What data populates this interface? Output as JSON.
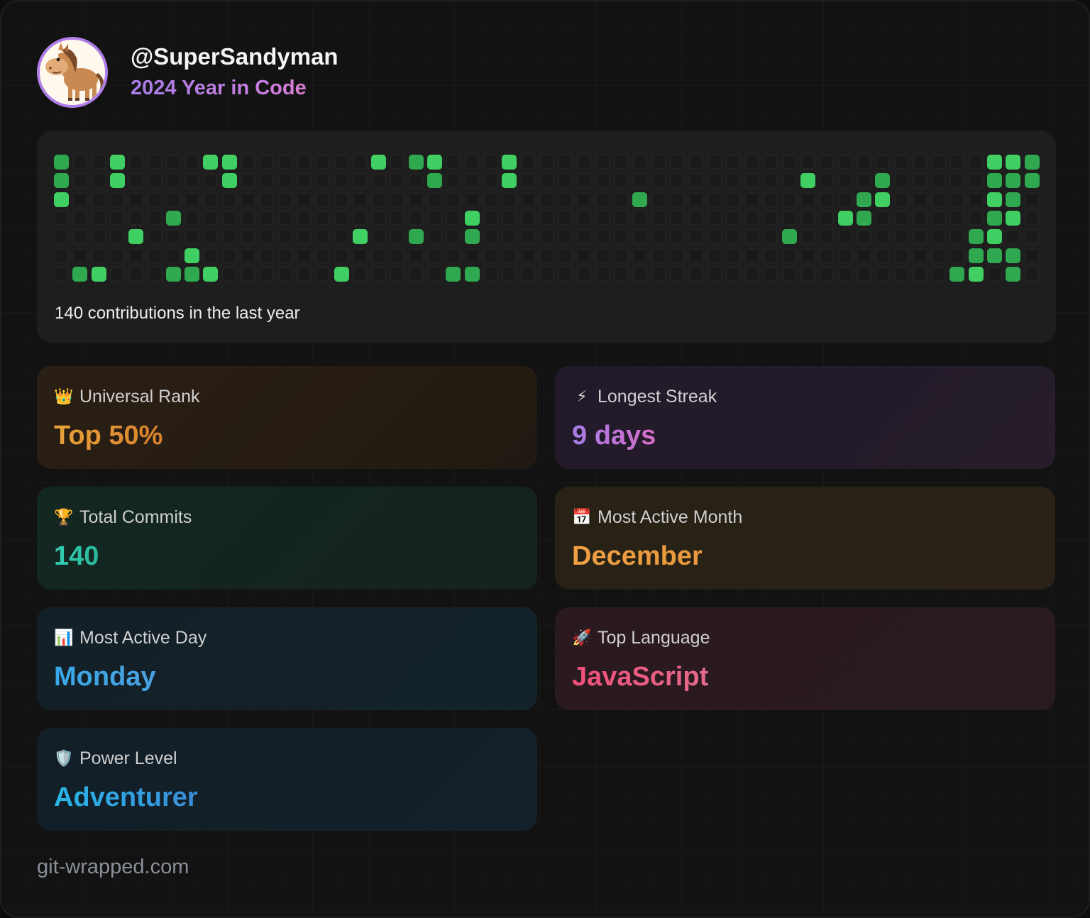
{
  "profile": {
    "username": "@SuperSandyman",
    "subtitle": "2024 Year in Code",
    "avatar_icon": "horse-avatar-icon",
    "avatar_border_color": "#b07ee8"
  },
  "contributions": {
    "caption": "140 contributions in the last year",
    "weeks": 53,
    "days_per_week": 7,
    "colors": {
      "empty": "#1a1a1a",
      "level1": "#2fa84f",
      "level2": "#3fcf62"
    },
    "active_cells": [
      [
        0,
        0,
        1
      ],
      [
        0,
        1,
        1
      ],
      [
        0,
        2,
        2
      ],
      [
        3,
        0,
        2
      ],
      [
        3,
        1,
        2
      ],
      [
        8,
        0,
        2
      ],
      [
        9,
        0,
        2
      ],
      [
        9,
        1,
        2
      ],
      [
        17,
        0,
        2
      ],
      [
        19,
        0,
        1
      ],
      [
        20,
        0,
        2
      ],
      [
        20,
        1,
        1
      ],
      [
        24,
        0,
        2
      ],
      [
        24,
        1,
        2
      ],
      [
        51,
        0,
        2
      ],
      [
        52,
        0,
        1
      ],
      [
        51,
        1,
        1
      ],
      [
        52,
        1,
        1
      ],
      [
        50,
        0,
        2
      ],
      [
        50,
        1,
        1
      ],
      [
        50,
        2,
        2
      ],
      [
        51,
        2,
        1
      ],
      [
        6,
        3,
        1
      ],
      [
        22,
        3,
        2
      ],
      [
        4,
        4,
        2
      ],
      [
        16,
        4,
        2
      ],
      [
        19,
        4,
        1
      ],
      [
        22,
        4,
        1
      ],
      [
        7,
        5,
        2
      ],
      [
        1,
        6,
        1
      ],
      [
        2,
        6,
        2
      ],
      [
        6,
        6,
        1
      ],
      [
        7,
        6,
        1
      ],
      [
        8,
        6,
        2
      ],
      [
        15,
        6,
        2
      ],
      [
        21,
        6,
        1
      ],
      [
        22,
        6,
        1
      ],
      [
        31,
        2,
        1
      ],
      [
        40,
        1,
        2
      ],
      [
        44,
        1,
        1
      ],
      [
        43,
        2,
        1
      ],
      [
        44,
        2,
        2
      ],
      [
        42,
        3,
        2
      ],
      [
        43,
        3,
        1
      ],
      [
        39,
        4,
        1
      ],
      [
        50,
        3,
        1
      ],
      [
        51,
        3,
        2
      ],
      [
        49,
        4,
        1
      ],
      [
        50,
        4,
        2
      ],
      [
        49,
        5,
        1
      ],
      [
        50,
        5,
        1
      ],
      [
        51,
        5,
        1
      ],
      [
        48,
        6,
        1
      ],
      [
        49,
        6,
        2
      ],
      [
        51,
        6,
        1
      ]
    ]
  },
  "stats": [
    {
      "key": "universal-rank",
      "icon": "crown-icon",
      "emoji": "👑",
      "label": "Universal Rank",
      "value": "Top 50%",
      "bg": [
        "#2a1f14",
        "#221a12"
      ],
      "value_gradient": [
        "#e8a23a",
        "#d9822b"
      ]
    },
    {
      "key": "longest-streak",
      "icon": "lightning-icon",
      "emoji": "⚡",
      "label": "Longest Streak",
      "value": "9 days",
      "bg": [
        "#221a2a",
        "#261c2a"
      ],
      "value_gradient": [
        "#a67ee8",
        "#d46cc7"
      ]
    },
    {
      "key": "total-commits",
      "icon": "trophy-icon",
      "emoji": "🏆",
      "label": "Total Commits",
      "value": "140",
      "bg": [
        "#132722",
        "#16231d"
      ],
      "value_gradient": [
        "#34d0b6",
        "#2ab79a"
      ]
    },
    {
      "key": "most-active-month",
      "icon": "calendar-icon",
      "emoji": "📅",
      "label": "Most Active Month",
      "value": "December",
      "bg": [
        "#272116",
        "#2a2216"
      ],
      "value_gradient": [
        "#f0a045",
        "#e89a3c"
      ]
    },
    {
      "key": "most-active-day",
      "icon": "bar-chart-icon",
      "emoji": "📊",
      "label": "Most Active Day",
      "value": "Monday",
      "bg": [
        "#132027",
        "#14222a"
      ],
      "value_gradient": [
        "#3aa8e8",
        "#4ba0e0"
      ]
    },
    {
      "key": "top-language",
      "icon": "rocket-icon",
      "emoji": "🚀",
      "label": "Top Language",
      "value": "JavaScript",
      "bg": [
        "#2a1a20",
        "#2a1b1f"
      ],
      "value_gradient": [
        "#f04f7a",
        "#e46a8a"
      ]
    },
    {
      "key": "power-level",
      "icon": "shield-icon",
      "emoji": "🛡️",
      "label": "Power Level",
      "value": "Adventurer",
      "bg": [
        "#121f27",
        "#14202a"
      ],
      "value_gradient": [
        "#28b6e8",
        "#3a8ed8"
      ]
    }
  ],
  "footer": {
    "site": "git-wrapped.com"
  }
}
